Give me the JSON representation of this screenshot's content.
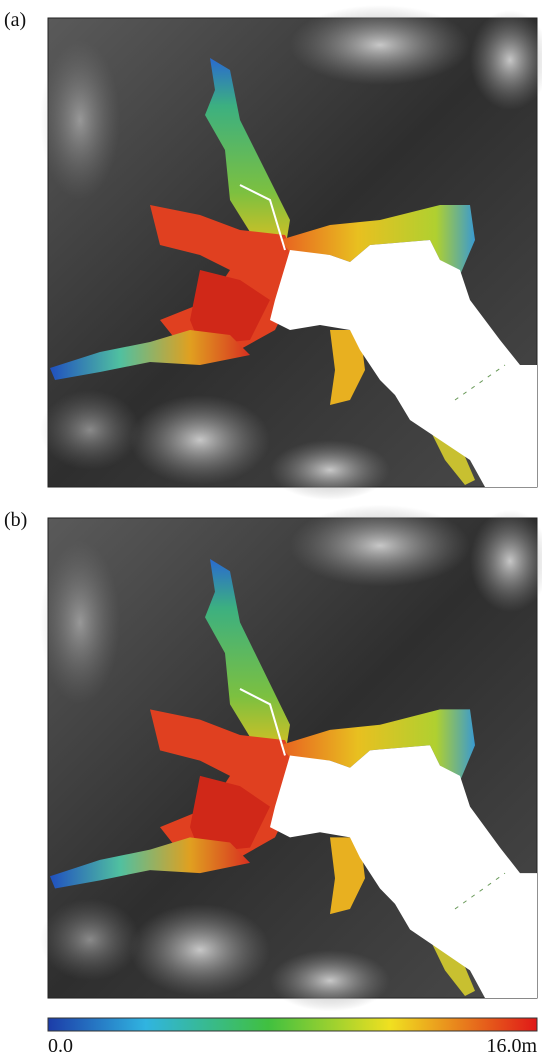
{
  "panels": [
    {
      "label": "(a)"
    },
    {
      "label": "(b)"
    }
  ],
  "colorbar": {
    "min_label": "0.0",
    "max_label": "16.0m"
  }
}
